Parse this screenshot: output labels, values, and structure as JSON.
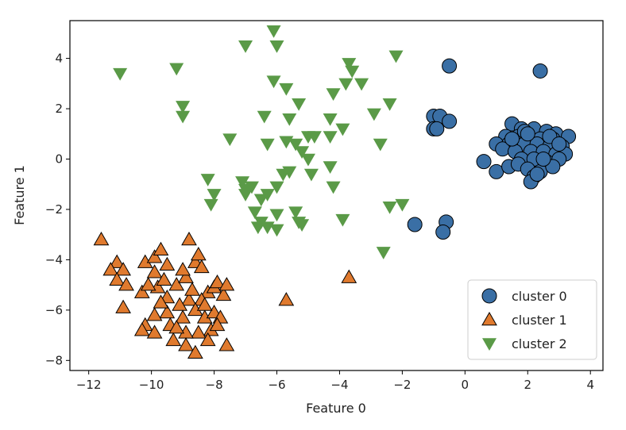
{
  "chart_data": {
    "type": "scatter",
    "xlabel": "Feature 0",
    "ylabel": "Feature 1",
    "xlim": [
      -12.6,
      4.4
    ],
    "ylim": [
      -8.4,
      5.5
    ],
    "xticks": [
      -12,
      -10,
      -8,
      -6,
      -4,
      -2,
      0,
      2,
      4
    ],
    "yticks": [
      -8,
      -6,
      -4,
      -2,
      0,
      2,
      4
    ],
    "grid": false,
    "legend": "lower-right",
    "series": [
      {
        "name": "cluster 0",
        "marker": "circle",
        "color": "#3a6fa5",
        "points": [
          [
            -0.5,
            3.7
          ],
          [
            2.4,
            3.5
          ],
          [
            -1.0,
            1.7
          ],
          [
            -0.8,
            1.7
          ],
          [
            -0.5,
            1.5
          ],
          [
            -1.0,
            1.2
          ],
          [
            -0.9,
            1.2
          ],
          [
            1.5,
            1.4
          ],
          [
            1.8,
            1.2
          ],
          [
            2.2,
            1.2
          ],
          [
            2.6,
            1.1
          ],
          [
            2.9,
            1.0
          ],
          [
            1.3,
            0.9
          ],
          [
            1.7,
            0.9
          ],
          [
            2.0,
            0.8
          ],
          [
            2.4,
            0.8
          ],
          [
            2.8,
            0.8
          ],
          [
            3.3,
            0.9
          ],
          [
            1.0,
            0.6
          ],
          [
            1.4,
            0.6
          ],
          [
            1.9,
            0.6
          ],
          [
            2.3,
            0.6
          ],
          [
            2.7,
            0.5
          ],
          [
            3.1,
            0.5
          ],
          [
            1.2,
            0.4
          ],
          [
            1.6,
            0.3
          ],
          [
            2.1,
            0.3
          ],
          [
            2.5,
            0.3
          ],
          [
            2.9,
            0.2
          ],
          [
            3.2,
            0.2
          ],
          [
            1.8,
            0.0
          ],
          [
            2.2,
            0.0
          ],
          [
            2.6,
            -0.1
          ],
          [
            3.0,
            0.0
          ],
          [
            0.6,
            -0.1
          ],
          [
            1.0,
            -0.5
          ],
          [
            1.4,
            -0.3
          ],
          [
            1.7,
            -0.2
          ],
          [
            2.0,
            -0.4
          ],
          [
            2.4,
            -0.5
          ],
          [
            2.8,
            -0.3
          ],
          [
            2.2,
            -0.7
          ],
          [
            2.1,
            -0.9
          ],
          [
            2.3,
            -0.6
          ],
          [
            1.9,
            1.1
          ],
          [
            2.7,
            0.9
          ],
          [
            3.0,
            0.6
          ],
          [
            1.5,
            0.8
          ],
          [
            2.0,
            1.0
          ],
          [
            2.5,
            0.0
          ],
          [
            -1.6,
            -2.6
          ],
          [
            -0.6,
            -2.5
          ],
          [
            -0.7,
            -2.9
          ]
        ]
      },
      {
        "name": "cluster 1",
        "marker": "triangle-up",
        "color": "#e07a2e",
        "points": [
          [
            -11.6,
            -3.2
          ],
          [
            -8.8,
            -3.2
          ],
          [
            -11.1,
            -4.1
          ],
          [
            -11.3,
            -4.4
          ],
          [
            -10.9,
            -4.4
          ],
          [
            -11.1,
            -4.8
          ],
          [
            -10.8,
            -5.0
          ],
          [
            -10.9,
            -5.9
          ],
          [
            -10.2,
            -4.1
          ],
          [
            -9.9,
            -3.9
          ],
          [
            -9.7,
            -3.6
          ],
          [
            -9.5,
            -4.2
          ],
          [
            -9.9,
            -4.5
          ],
          [
            -10.3,
            -5.3
          ],
          [
            -9.8,
            -5.1
          ],
          [
            -9.5,
            -5.5
          ],
          [
            -9.2,
            -5.0
          ],
          [
            -8.9,
            -4.7
          ],
          [
            -8.6,
            -4.1
          ],
          [
            -8.4,
            -4.3
          ],
          [
            -8.5,
            -3.8
          ],
          [
            -8.2,
            -5.3
          ],
          [
            -8.0,
            -5.1
          ],
          [
            -7.9,
            -4.9
          ],
          [
            -7.7,
            -5.4
          ],
          [
            -7.6,
            -5.0
          ],
          [
            -8.4,
            -5.6
          ],
          [
            -8.8,
            -5.6
          ],
          [
            -9.1,
            -5.8
          ],
          [
            -9.5,
            -6.1
          ],
          [
            -9.9,
            -6.2
          ],
          [
            -10.2,
            -6.6
          ],
          [
            -10.3,
            -6.8
          ],
          [
            -9.9,
            -6.9
          ],
          [
            -9.4,
            -6.6
          ],
          [
            -9.0,
            -6.3
          ],
          [
            -8.6,
            -6.0
          ],
          [
            -8.3,
            -6.3
          ],
          [
            -8.0,
            -6.1
          ],
          [
            -7.8,
            -6.3
          ],
          [
            -8.1,
            -6.8
          ],
          [
            -8.5,
            -6.9
          ],
          [
            -8.9,
            -6.9
          ],
          [
            -9.3,
            -7.2
          ],
          [
            -8.9,
            -7.4
          ],
          [
            -8.6,
            -7.7
          ],
          [
            -8.2,
            -7.2
          ],
          [
            -7.6,
            -7.4
          ],
          [
            -3.7,
            -4.7
          ],
          [
            -5.7,
            -5.6
          ],
          [
            -10.1,
            -5.0
          ],
          [
            -9.6,
            -4.8
          ],
          [
            -9.0,
            -4.4
          ],
          [
            -8.7,
            -5.2
          ],
          [
            -8.3,
            -5.8
          ],
          [
            -7.9,
            -6.6
          ],
          [
            -9.2,
            -6.7
          ],
          [
            -9.7,
            -5.7
          ]
        ]
      },
      {
        "name": "cluster 2",
        "marker": "triangle-down",
        "color": "#5a9a47",
        "points": [
          [
            -6.1,
            5.1
          ],
          [
            -7.0,
            4.5
          ],
          [
            -6.0,
            4.5
          ],
          [
            -2.2,
            4.1
          ],
          [
            -3.7,
            3.8
          ],
          [
            -3.6,
            3.5
          ],
          [
            -11.0,
            3.4
          ],
          [
            -9.2,
            3.6
          ],
          [
            -6.1,
            3.1
          ],
          [
            -5.7,
            2.8
          ],
          [
            -3.8,
            3.0
          ],
          [
            -3.3,
            3.0
          ],
          [
            -4.2,
            2.6
          ],
          [
            -5.3,
            2.2
          ],
          [
            -9.0,
            2.1
          ],
          [
            -9.0,
            1.7
          ],
          [
            -6.4,
            1.7
          ],
          [
            -5.6,
            1.6
          ],
          [
            -4.3,
            1.6
          ],
          [
            -2.9,
            1.8
          ],
          [
            -2.4,
            2.2
          ],
          [
            -3.9,
            1.2
          ],
          [
            -5.0,
            0.9
          ],
          [
            -4.8,
            0.9
          ],
          [
            -5.7,
            0.7
          ],
          [
            -5.4,
            0.6
          ],
          [
            -4.3,
            0.9
          ],
          [
            -2.7,
            0.6
          ],
          [
            -7.5,
            0.8
          ],
          [
            -6.3,
            0.6
          ],
          [
            -5.2,
            0.3
          ],
          [
            -5.0,
            0.0
          ],
          [
            -5.8,
            -0.6
          ],
          [
            -4.9,
            -0.6
          ],
          [
            -4.3,
            -0.3
          ],
          [
            -8.2,
            -0.8
          ],
          [
            -7.1,
            -0.9
          ],
          [
            -6.8,
            -1.1
          ],
          [
            -6.0,
            -1.1
          ],
          [
            -8.0,
            -1.4
          ],
          [
            -7.0,
            -1.4
          ],
          [
            -6.5,
            -1.6
          ],
          [
            -6.3,
            -1.4
          ],
          [
            -8.1,
            -1.8
          ],
          [
            -6.7,
            -2.1
          ],
          [
            -6.0,
            -2.2
          ],
          [
            -5.4,
            -2.1
          ],
          [
            -4.2,
            -1.1
          ],
          [
            -6.5,
            -2.5
          ],
          [
            -6.3,
            -2.7
          ],
          [
            -5.3,
            -2.5
          ],
          [
            -6.0,
            -2.8
          ],
          [
            -5.2,
            -2.6
          ],
          [
            -3.9,
            -2.4
          ],
          [
            -2.4,
            -1.9
          ],
          [
            -2.0,
            -1.8
          ],
          [
            -2.6,
            -3.7
          ],
          [
            -6.6,
            -2.7
          ],
          [
            -5.6,
            -0.5
          ],
          [
            -7.0,
            -1.2
          ]
        ]
      }
    ]
  }
}
